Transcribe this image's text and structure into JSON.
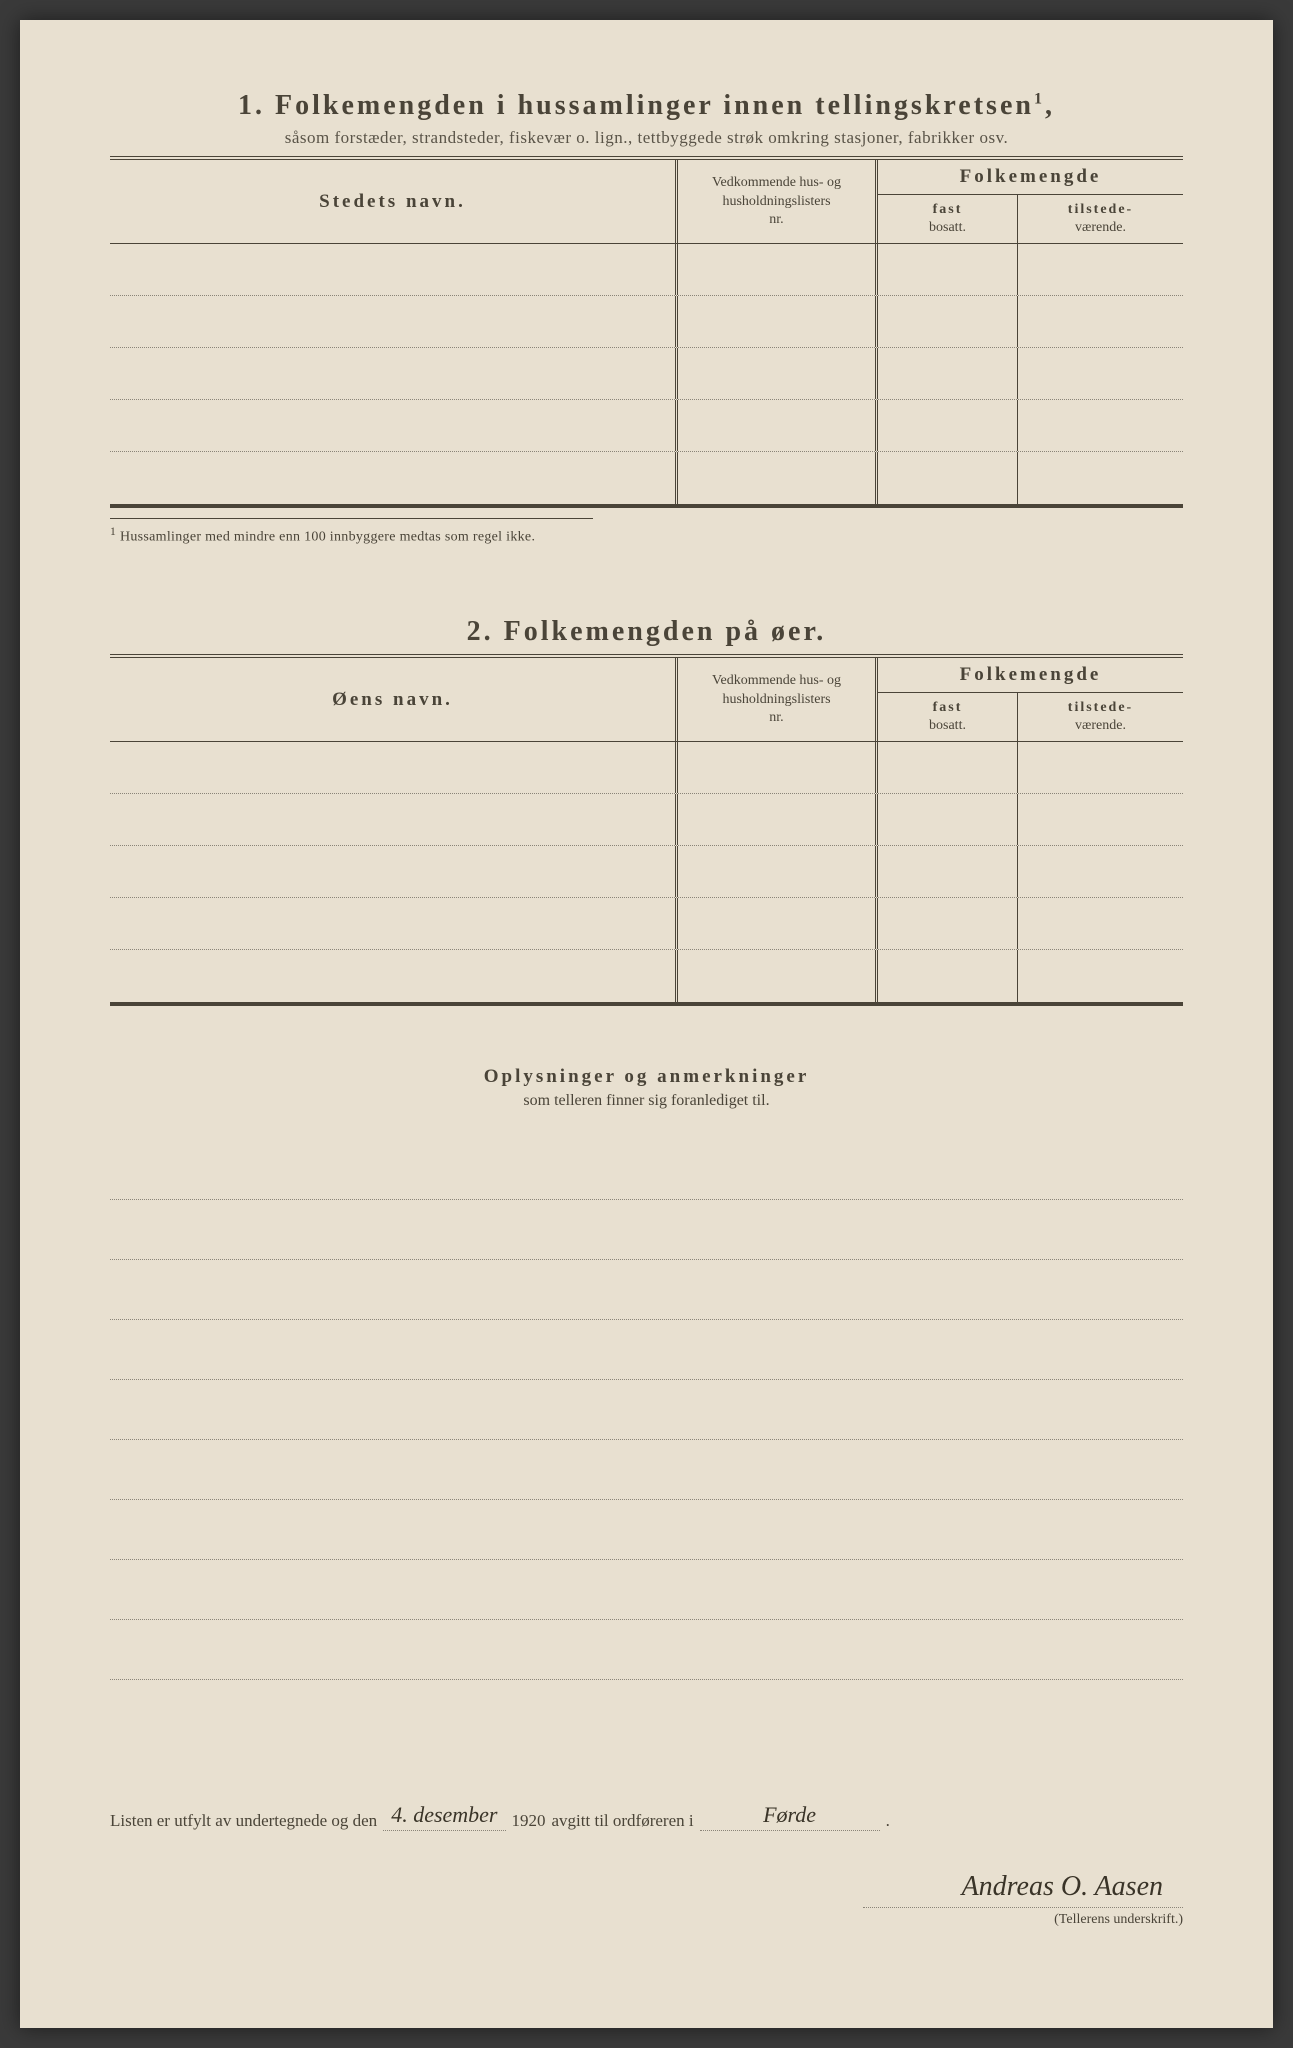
{
  "section1": {
    "number": "1.",
    "title": "Folkemengden i hussamlinger innen tellingskretsen",
    "title_sup": "1",
    "subtitle": "såsom forstæder, strandsteder, fiskevær o. lign., tettbyggede strøk omkring stasjoner, fabrikker osv.",
    "col_name": "Stedets navn.",
    "col_ref_l1": "Vedkommende hus- og",
    "col_ref_l2": "husholdningslisters",
    "col_ref_l3": "nr.",
    "col_pop_title": "Folkemengde",
    "col_fast_label": "fast",
    "col_fast_sub": "bosatt.",
    "col_til_label": "tilstede-",
    "col_til_sub": "værende.",
    "row_count": 5,
    "footnote_marker": "1",
    "footnote": "Hussamlinger med mindre enn 100 innbyggere medtas som regel ikke."
  },
  "section2": {
    "number": "2.",
    "title": "Folkemengden på øer.",
    "col_name": "Øens navn.",
    "col_ref_l1": "Vedkommende hus- og",
    "col_ref_l2": "husholdningslisters",
    "col_ref_l3": "nr.",
    "col_pop_title": "Folkemengde",
    "col_fast_label": "fast",
    "col_fast_sub": "bosatt.",
    "col_til_label": "tilstede-",
    "col_til_sub": "værende.",
    "row_count": 5
  },
  "section3": {
    "title": "Oplysninger og anmerkninger",
    "subtitle": "som telleren finner sig foranlediget til.",
    "line_count": 9
  },
  "footer": {
    "text1": "Listen er utfylt av undertegnede og den",
    "date_handwritten": "4. desember",
    "year": "1920",
    "text2": "avgitt til ordføreren i",
    "place_handwritten": "Førde",
    "signature_handwritten": "Andreas O. Aasen",
    "signature_label": "(Tellerens underskrift.)"
  },
  "colors": {
    "paper": "#e8e0d0",
    "ink": "#4a4438",
    "dotted": "#8a8478",
    "handwriting": "#3a3428"
  }
}
